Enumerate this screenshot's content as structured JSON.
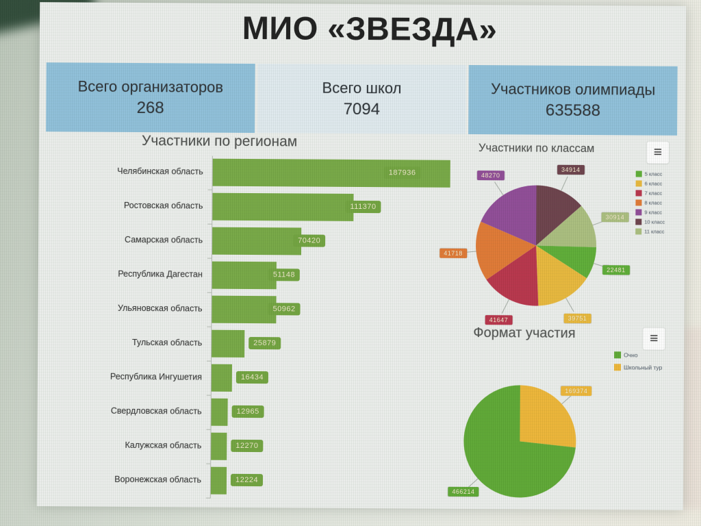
{
  "title": "МИО «ЗВЕЗДА»",
  "icons": {
    "menu": "≡"
  },
  "kpis": [
    {
      "label": "Всего организаторов",
      "value": "268",
      "bg": "#8abfdb"
    },
    {
      "label": "Всего школ",
      "value": "7094",
      "bg": "#dde8ed"
    },
    {
      "label": "Участников олимпиады",
      "value": "635588",
      "bg": "#8abfdb"
    }
  ],
  "chart_data": [
    {
      "type": "bar",
      "title": "Участники по регионам",
      "orientation": "horizontal",
      "categories": [
        "Челябинская область",
        "Ростовская область",
        "Самарская область",
        "Республика Дагестан",
        "Ульяновская область",
        "Тульская область",
        "Республика Ингушетия",
        "Свердловская область",
        "Калужская область",
        "Воронежская область"
      ],
      "values": [
        187936,
        111370,
        70420,
        51148,
        50962,
        25879,
        16434,
        12965,
        12270,
        12224
      ],
      "bar_color": "#72a73c",
      "value_label_bg": "#6ca336",
      "value_label_color": "#f2eec6",
      "xlim": [
        0,
        200000
      ],
      "grid": false
    },
    {
      "type": "pie",
      "title": "Участники по классам",
      "legend_position": "right",
      "slices": [
        {
          "label": "10 класс",
          "value": 34914,
          "color": "#6d3e49"
        },
        {
          "label": "11 класс",
          "value": 30914,
          "color": "#a7bd77"
        },
        {
          "label": "5 класс",
          "value": 22481,
          "color": "#57ad2c"
        },
        {
          "label": "6 класс",
          "value": 39751,
          "color": "#eab62f"
        },
        {
          "label": "7 класс",
          "value": 41647,
          "color": "#bf3048"
        },
        {
          "label": "8 класс",
          "value": 41718,
          "color": "#e5762b"
        },
        {
          "label": "9 класс",
          "value": 48270,
          "color": "#92479a"
        }
      ],
      "legend_order": [
        "5 класс",
        "6 класс",
        "7 класс",
        "8 класс",
        "9 класс",
        "10 класс",
        "11 класс"
      ]
    },
    {
      "type": "pie",
      "title": "Формат участия",
      "legend_position": "right",
      "slices": [
        {
          "label": "Школьный тур",
          "value": 169374,
          "color": "#efb42a"
        },
        {
          "label": "Очно",
          "value": 466214,
          "color": "#58a82a"
        }
      ],
      "legend_order": [
        "Очно",
        "Школьный тур"
      ]
    }
  ]
}
